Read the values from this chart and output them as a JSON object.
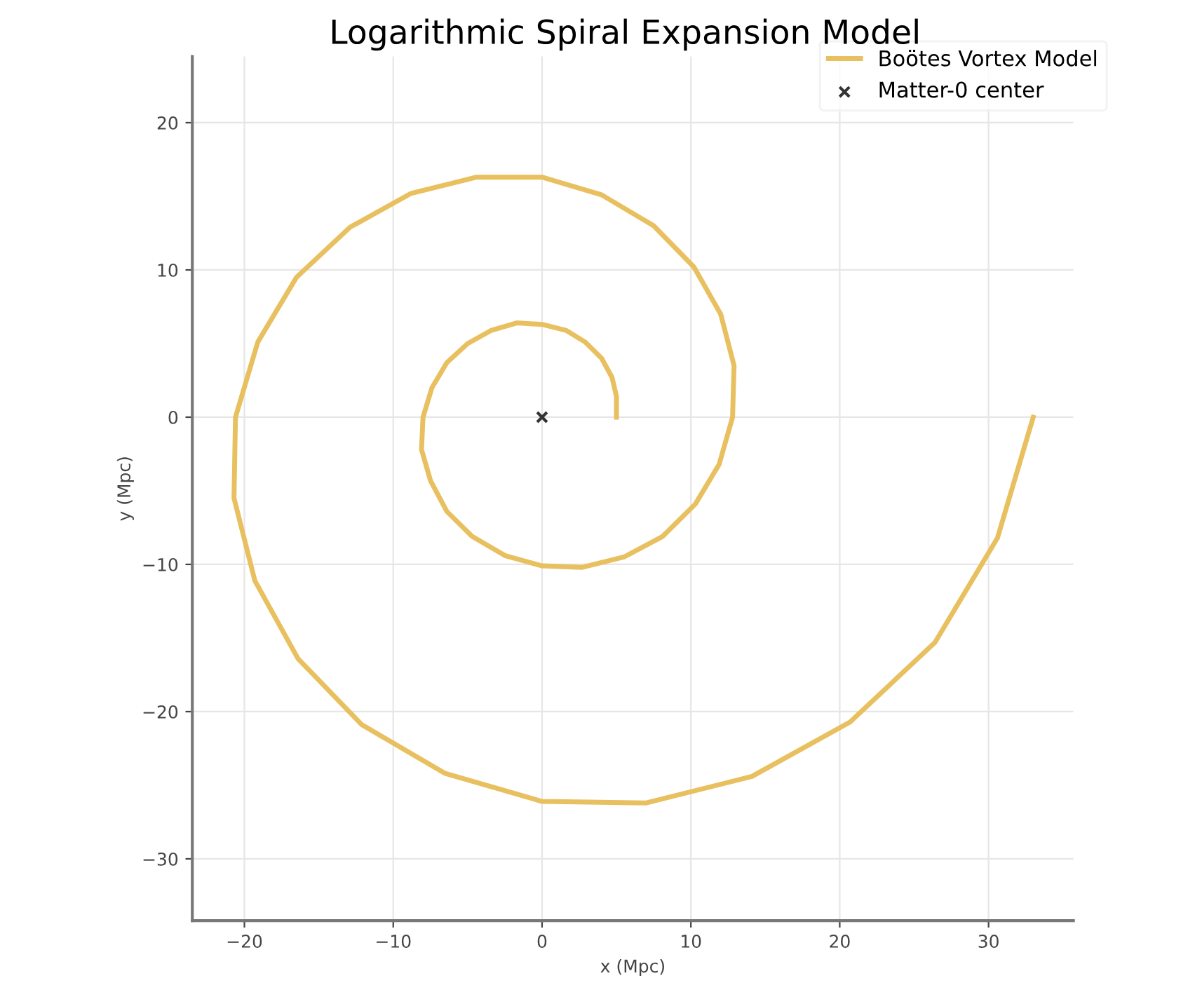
{
  "chart_data": {
    "type": "line",
    "title": "Logarithmic Spiral Expansion Model",
    "xlabel": "x (Mpc)",
    "ylabel": "y (Mpc)",
    "xlim": [
      -23.5,
      35.7
    ],
    "ylim": [
      -34.2,
      24.5
    ],
    "xticks": [
      -20,
      -10,
      0,
      10,
      20,
      30
    ],
    "yticks": [
      -30,
      -20,
      -10,
      0,
      10,
      20
    ],
    "grid": true,
    "legend": "top right",
    "series": [
      {
        "name": "Boötes Vortex Model",
        "color": "#e8c060",
        "marker": "none",
        "line_style": "solid",
        "x": [
          5.0,
          5.0,
          4.7,
          4.0,
          2.9,
          1.6,
          0.0,
          -1.7,
          -3.4,
          -5.0,
          -6.4,
          -7.4,
          -8.0,
          -8.1,
          -7.5,
          -6.4,
          -4.7,
          -2.5,
          0.0,
          2.7,
          5.5,
          8.1,
          10.3,
          11.9,
          12.8,
          12.9,
          12.0,
          10.2,
          7.5,
          4.0,
          0.0,
          -4.4,
          -8.8,
          -12.9,
          -16.5,
          -19.1,
          -20.6,
          -20.7,
          -19.3,
          -16.4,
          -12.1,
          -6.5,
          0.0,
          7.0,
          14.1,
          20.7,
          26.4,
          30.6,
          33.0
        ],
        "values": [
          0.0,
          1.4,
          2.7,
          4.0,
          5.1,
          5.9,
          6.3,
          6.4,
          5.9,
          5.0,
          3.7,
          2.0,
          0.0,
          -2.2,
          -4.3,
          -6.4,
          -8.1,
          -9.4,
          -10.1,
          -10.2,
          -9.5,
          -8.1,
          -5.9,
          -3.2,
          0.0,
          3.5,
          7.0,
          10.2,
          13.0,
          15.1,
          16.3,
          16.3,
          15.2,
          12.9,
          9.5,
          5.1,
          0.0,
          -5.5,
          -11.1,
          -16.4,
          -20.9,
          -24.2,
          -26.1,
          -26.2,
          -24.4,
          -20.7,
          -15.3,
          -8.2,
          0.0
        ]
      },
      {
        "name": "Matter-0 center",
        "type": "scatter",
        "color": "#333333",
        "marker": "cross",
        "x": [
          0
        ],
        "values": [
          0
        ]
      }
    ]
  }
}
